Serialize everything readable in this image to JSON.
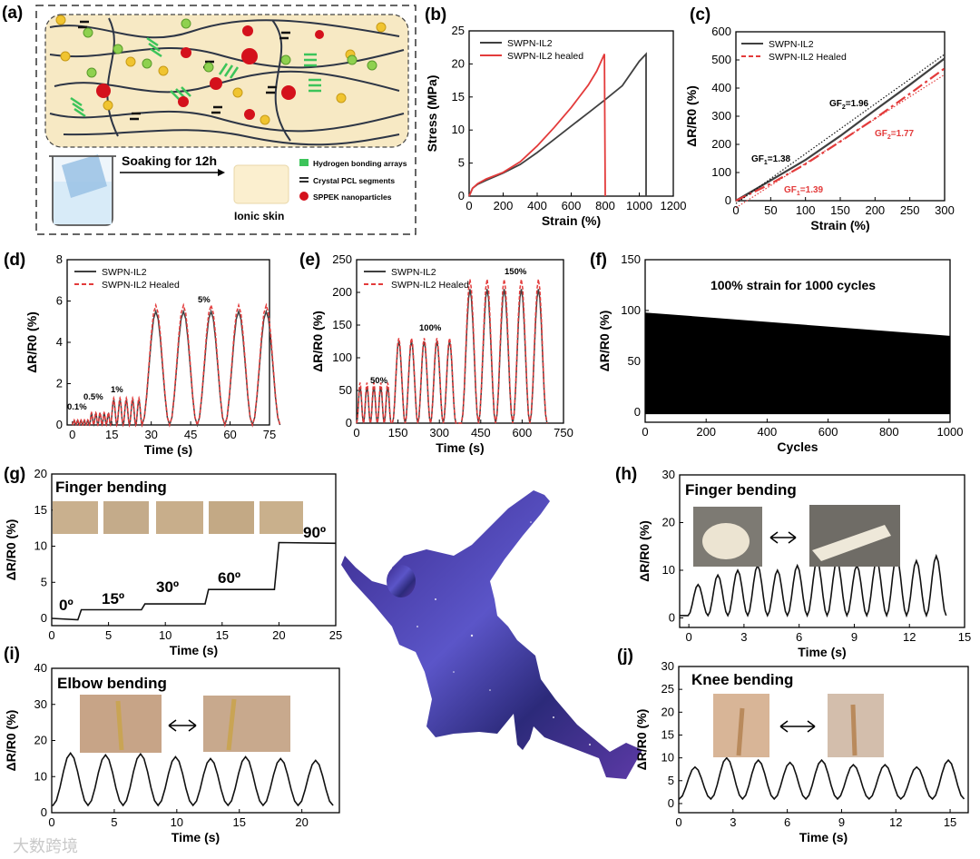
{
  "panel_letters": {
    "a": "(a)",
    "b": "(b)",
    "c": "(c)",
    "d": "(d)",
    "e": "(e)",
    "f": "(f)",
    "g": "(g)",
    "h": "(h)",
    "i": "(i)",
    "j": "(j)"
  },
  "schematic": {
    "step_label": "Soaking for 12h",
    "legend": [
      "Hydrogen bonding arrays",
      "Crystal PCL segments",
      "SPPEK nanoparticles"
    ],
    "product_label": "Ionic skin",
    "colors": {
      "hbond": "#3cc45a",
      "pcl": "#111111",
      "sppek": "#d4111c",
      "cation": "#f0c430",
      "anion": "#8fd14f",
      "matrix": "#f7e9c4"
    }
  },
  "watermark": "大数跨境",
  "colors": {
    "black": "#404040",
    "red": "#e33b3b",
    "fill": "#000000"
  },
  "chart_data": [
    {
      "id": "b",
      "type": "line",
      "xlabel": "Strain (%)",
      "ylabel": "Stress (MPa)",
      "xlim": [
        0,
        1200
      ],
      "ylim": [
        0,
        25
      ],
      "xticks": [
        "0",
        "200",
        "400",
        "600",
        "800",
        "1000",
        "1200"
      ],
      "yticks": [
        "0",
        "5",
        "10",
        "15",
        "20",
        "25"
      ],
      "legend": "top-left",
      "series": [
        {
          "name": "SWPN-IL2",
          "color": "#404040",
          "x": [
            0,
            20,
            50,
            100,
            200,
            300,
            400,
            500,
            600,
            700,
            800,
            900,
            1000,
            1040,
            1040
          ],
          "y": [
            0,
            1.2,
            1.8,
            2.4,
            3.5,
            4.8,
            6.6,
            8.6,
            10.6,
            12.6,
            14.6,
            16.7,
            20.4,
            21.5,
            0
          ]
        },
        {
          "name": "SWPN-IL2 healed",
          "color": "#e33b3b",
          "x": [
            0,
            20,
            50,
            100,
            200,
            300,
            400,
            500,
            600,
            700,
            750,
            795,
            800
          ],
          "y": [
            0,
            1.2,
            1.9,
            2.6,
            3.6,
            5.2,
            7.6,
            10.4,
            13.4,
            16.8,
            18.9,
            21.5,
            0
          ]
        }
      ]
    },
    {
      "id": "c",
      "type": "line",
      "xlabel": "Strain (%)",
      "ylabel": "ΔR/R0 (%)",
      "xlim": [
        0,
        300
      ],
      "ylim": [
        0,
        600
      ],
      "xticks": [
        "0",
        "50",
        "100",
        "150",
        "200",
        "250",
        "300"
      ],
      "yticks": [
        "0",
        "100",
        "200",
        "300",
        "400",
        "500",
        "600"
      ],
      "legend": "top-left",
      "series": [
        {
          "name": "SWPN-IL2",
          "color": "#404040",
          "x": [
            0,
            50,
            100,
            150,
            200,
            250,
            300
          ],
          "y": [
            0,
            72,
            145,
            230,
            322,
            412,
            505
          ]
        },
        {
          "name": "SWPN-IL2 Healed",
          "color": "#e33b3b",
          "dash": true,
          "x": [
            0,
            50,
            100,
            150,
            200,
            250,
            300
          ],
          "y": [
            0,
            60,
            130,
            210,
            292,
            380,
            470
          ]
        }
      ],
      "annotations": [
        {
          "text": "GF",
          "sub": "1",
          "value": "=1.38",
          "color": "#000000"
        },
        {
          "text": "GF",
          "sub": "2",
          "value": "=1.96",
          "color": "#000000"
        },
        {
          "text": "GF",
          "sub": "2",
          "value": "=1.77",
          "color": "#e33b3b"
        },
        {
          "text": "GF",
          "sub": "1",
          "value": "=1.39",
          "color": "#e33b3b"
        }
      ]
    },
    {
      "id": "d",
      "type": "line",
      "xlabel": "Time (s)",
      "ylabel": "ΔR/R0 (%)",
      "xlim": [
        -2,
        75
      ],
      "ylim": [
        0,
        8
      ],
      "xticks": [
        "0",
        "15",
        "30",
        "45",
        "60",
        "75"
      ],
      "yticks": [
        "0",
        "2",
        "4",
        "6",
        "8"
      ],
      "legend": "top-left",
      "series_names": [
        "SWPN-IL2",
        "SWPN-IL2 Healed"
      ],
      "segments": [
        {
          "label": "0.1%",
          "start": 0,
          "count": 5,
          "period": 1.3,
          "peak": 0.2,
          "peak_healed": 0.25
        },
        {
          "label": "0.5%",
          "start": 6.5,
          "count": 5,
          "period": 1.6,
          "peak": 0.55,
          "peak_healed": 0.6
        },
        {
          "label": "1%",
          "start": 14.5,
          "count": 5,
          "period": 2.4,
          "peak": 1.2,
          "peak_healed": 1.3
        },
        {
          "label": "5%",
          "start": 26.5,
          "count": 5,
          "period": 10.5,
          "peak": 5.5,
          "peak_healed": 5.8
        }
      ]
    },
    {
      "id": "e",
      "type": "line",
      "xlabel": "Time (s)",
      "ylabel": "ΔR/R0 (%)",
      "xlim": [
        0,
        750
      ],
      "ylim": [
        0,
        250
      ],
      "xticks": [
        "0",
        "150",
        "300",
        "450",
        "600",
        "750"
      ],
      "yticks": [
        "0",
        "50",
        "100",
        "150",
        "200",
        "250"
      ],
      "legend": "top-left",
      "series_names": [
        "SWPN-IL2",
        "SWPN-IL2 Healed"
      ],
      "segments": [
        {
          "label": "50%",
          "start": 0,
          "count": 5,
          "period": 25,
          "peak": 55,
          "peak_healed": 62
        },
        {
          "label": "100%",
          "start": 130,
          "count": 5,
          "period": 46,
          "peak": 125,
          "peak_healed": 130
        },
        {
          "label": "150%",
          "start": 380,
          "count": 5,
          "period": 62,
          "peak": 205,
          "peak_healed": 220
        }
      ]
    },
    {
      "id": "f",
      "type": "area",
      "title": "100% strain for 1000 cycles",
      "xlabel": "Cycles",
      "ylabel": "ΔR/R0 (%)",
      "xlim": [
        0,
        1000
      ],
      "ylim": [
        -10,
        150
      ],
      "xticks": [
        "0",
        "200",
        "400",
        "600",
        "800",
        "1000"
      ],
      "yticks": [
        "0",
        "50",
        "100",
        "150"
      ],
      "envelope_top": {
        "x": [
          0,
          1000
        ],
        "y": [
          98,
          75
        ]
      },
      "envelope_bottom": {
        "x": [
          0,
          1000
        ],
        "y": [
          -2,
          -2
        ]
      }
    },
    {
      "id": "g",
      "type": "line",
      "title": "Finger bending",
      "xlabel": "Time (s)",
      "ylabel": "ΔR/R0 (%)",
      "xlim": [
        0,
        25
      ],
      "ylim": [
        -1,
        20
      ],
      "xticks": [
        "0",
        "5",
        "10",
        "15",
        "20",
        "25"
      ],
      "yticks": [
        "0",
        "5",
        "10",
        "15",
        "20"
      ],
      "series": [
        {
          "x": [
            0,
            2.3,
            2.6,
            7.9,
            8.2,
            13.5,
            13.8,
            19.6,
            20.0,
            25
          ],
          "y": [
            0,
            -0.2,
            1.2,
            1.2,
            2,
            2,
            4,
            4,
            10.5,
            10.4
          ]
        }
      ],
      "step_labels": [
        "0º",
        "15º",
        "30º",
        "60º",
        "90º"
      ]
    },
    {
      "id": "h",
      "type": "line",
      "title": "Finger bending",
      "xlabel": "Time (s)",
      "ylabel": "ΔR/R0 (%)",
      "xlim": [
        -0.5,
        15
      ],
      "ylim": [
        -2,
        30
      ],
      "xticks": [
        "0",
        "3",
        "6",
        "9",
        "12",
        "15"
      ],
      "yticks": [
        "0",
        "10",
        "20",
        "30"
      ],
      "peaks": [
        7,
        9,
        10,
        11,
        10,
        11,
        12,
        12,
        11,
        12,
        13,
        12,
        13
      ],
      "first_peak_time": 0.5,
      "period": 1.08
    },
    {
      "id": "i",
      "type": "line",
      "title": "Elbow bending",
      "xlabel": "Time (s)",
      "ylabel": "ΔR/R0 (%)",
      "xlim": [
        0,
        23
      ],
      "ylim": [
        0,
        40
      ],
      "xticks": [
        "0",
        "5",
        "10",
        "15",
        "20"
      ],
      "yticks": [
        "0",
        "10",
        "20",
        "30",
        "40"
      ],
      "peaks": [
        16.5,
        16,
        16.3,
        15.5,
        15,
        15.5,
        15,
        14.5
      ],
      "first_peak_time": 1.5,
      "period": 2.8,
      "baseline": 2
    },
    {
      "id": "j",
      "type": "line",
      "title": "Knee bending",
      "xlabel": "Time (s)",
      "ylabel": "ΔR/R0 (%)",
      "xlim": [
        0,
        16
      ],
      "ylim": [
        -2,
        30
      ],
      "xticks": [
        "0",
        "3",
        "6",
        "9",
        "12",
        "15"
      ],
      "yticks": [
        "0",
        "5",
        "10",
        "15",
        "20",
        "25",
        "30"
      ],
      "peaks": [
        8,
        10,
        9.5,
        9,
        9.5,
        8.5,
        8.5,
        8,
        9.5
      ],
      "first_peak_time": 0.9,
      "period": 1.75,
      "baseline": 1
    }
  ]
}
